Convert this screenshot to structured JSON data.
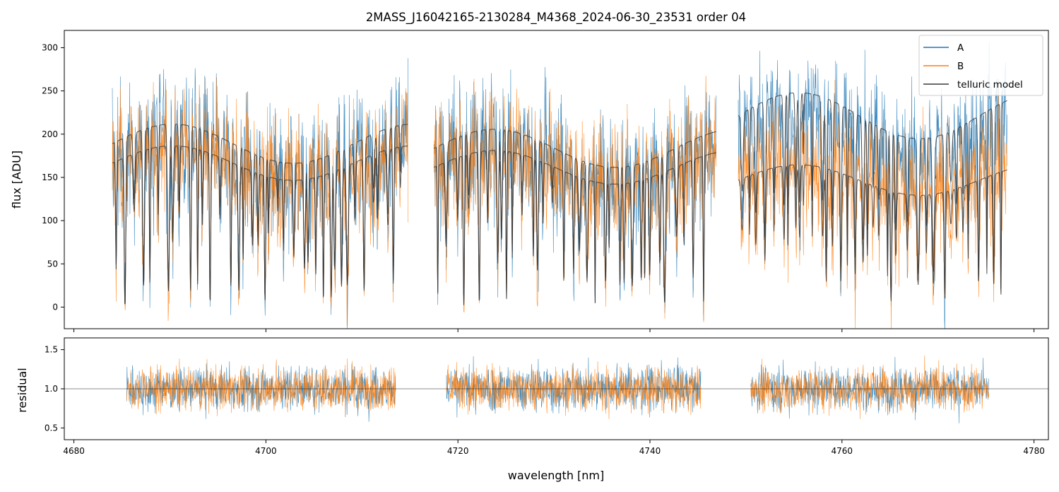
{
  "chart_data": [
    {
      "type": "line",
      "panel": "spectrum",
      "title": "2MASS_J16042165-2130284_M4368_2024-06-30_23531  order 04",
      "xlabel": "",
      "ylabel": "flux [ADU]",
      "xlim": [
        4679,
        4781.5
      ],
      "ylim": [
        -25,
        320
      ],
      "xticks": [
        4680,
        4700,
        4720,
        4740,
        4760,
        4780
      ],
      "yticks": [
        0,
        50,
        100,
        150,
        200,
        250,
        300
      ],
      "ytick_labels": [
        "0",
        "50",
        "100",
        "150",
        "200",
        "250",
        "300"
      ],
      "legend": {
        "placement": "top-right",
        "entries": [
          "A",
          "B",
          "telluric model"
        ]
      },
      "colors": {
        "A": "#1f77b4",
        "B": "#ff7f0e",
        "telluric model": "#3a3a3a"
      },
      "segments": [
        {
          "x_start": 4684.0,
          "x_end": 4714.8,
          "level_A": 175,
          "level_B": 170
        },
        {
          "x_start": 4717.5,
          "x_end": 4746.9,
          "level_A": 170,
          "level_B": 165
        },
        {
          "x_start": 4749.2,
          "x_end": 4777.2,
          "level_A": 205,
          "level_B": 150
        }
      ],
      "series": [
        {
          "name": "A",
          "note": "noisy observed spectrum, nod position A"
        },
        {
          "name": "B",
          "note": "noisy observed spectrum, nod position B"
        },
        {
          "name": "telluric model",
          "note": "smooth model spectra with absorption lines"
        }
      ]
    },
    {
      "type": "line",
      "panel": "residual",
      "xlabel": "wavelength [nm]",
      "ylabel": "residual",
      "xlim": [
        4679,
        4781.5
      ],
      "ylim": [
        0.35,
        1.65
      ],
      "xticks": [
        4680,
        4700,
        4720,
        4740,
        4760,
        4780
      ],
      "xtick_labels": [
        "4680",
        "4700",
        "4720",
        "4740",
        "4760",
        "4780"
      ],
      "yticks": [
        0.5,
        1.0,
        1.5
      ],
      "ytick_labels": [
        "0.5",
        "1.0",
        "1.5"
      ],
      "reference_line": 1.0,
      "segments": [
        {
          "x_start": 4685.5,
          "x_end": 4713.5
        },
        {
          "x_start": 4718.8,
          "x_end": 4745.3
        },
        {
          "x_start": 4750.5,
          "x_end": 4775.3
        }
      ],
      "series": [
        {
          "name": "A",
          "mean": 1.0,
          "spread": 0.25
        },
        {
          "name": "B",
          "mean": 1.0,
          "spread": 0.25
        }
      ]
    }
  ]
}
